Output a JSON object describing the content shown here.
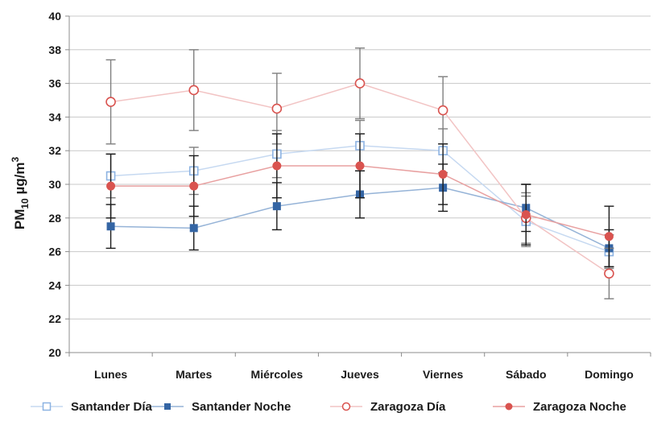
{
  "chart_data": {
    "type": "line",
    "title": "",
    "xlabel": "",
    "ylabel": {
      "prefix": "PM",
      "subscript": "10",
      "unit_base": " µg/m",
      "unit_superscript": "3"
    },
    "ylim": [
      20,
      40
    ],
    "yticks": [
      20,
      22,
      24,
      26,
      28,
      30,
      32,
      34,
      36,
      38,
      40
    ],
    "grid": true,
    "legend_position": "bottom",
    "categories": [
      "Lunes",
      "Martes",
      "Miércoles",
      "Jueves",
      "Viernes",
      "Sábado",
      "Domingo"
    ],
    "series": [
      {
        "name": "Santander Día",
        "values": [
          30.5,
          30.8,
          31.8,
          32.3,
          32.0,
          27.8,
          26.0
        ],
        "error": [
          1.3,
          1.4,
          1.4,
          1.5,
          1.3,
          1.5,
          1.0
        ],
        "color": "#8db3e2",
        "line_color": "#c6d9f1",
        "marker": "open-square"
      },
      {
        "name": "Santander Noche",
        "values": [
          27.5,
          27.4,
          28.7,
          29.4,
          29.8,
          28.6,
          26.2
        ],
        "error": [
          1.3,
          1.3,
          1.4,
          1.4,
          1.4,
          1.4,
          1.1
        ],
        "color": "#3465a4",
        "line_color": "#95b3d7",
        "marker": "filled-square"
      },
      {
        "name": "Zaragoza Día",
        "values": [
          34.9,
          35.6,
          34.5,
          36.0,
          34.4,
          28.0,
          24.7
        ],
        "error": [
          2.5,
          2.4,
          2.1,
          2.1,
          2.0,
          1.5,
          1.5
        ],
        "color": "#d9534f",
        "line_color": "#f2c4c4",
        "marker": "open-circle"
      },
      {
        "name": "Zaragoza Noche",
        "values": [
          29.9,
          29.9,
          31.1,
          31.1,
          30.6,
          28.2,
          26.9
        ],
        "error": [
          1.9,
          1.8,
          1.9,
          1.9,
          1.8,
          1.8,
          1.8
        ],
        "color": "#d9534f",
        "line_color": "#e8a0a0",
        "marker": "filled-circle"
      }
    ]
  }
}
